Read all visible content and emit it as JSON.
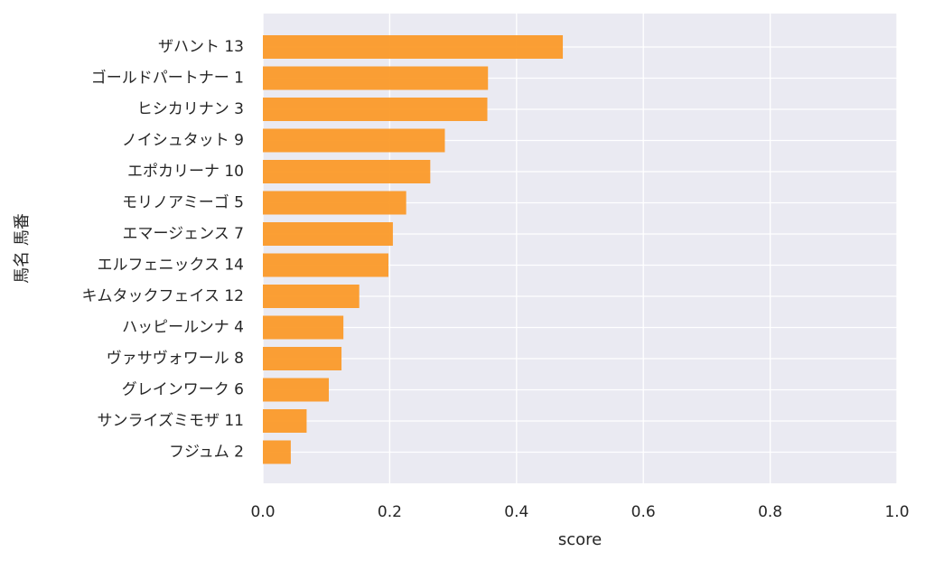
{
  "chart_data": {
    "type": "bar",
    "orientation": "horizontal",
    "categories": [
      "ザハント 13",
      "ゴールドパートナー 1",
      "ヒシカリナン 3",
      "ノイシュタット 9",
      "エポカリーナ 10",
      "モリノアミーゴ 5",
      "エマージェンス 7",
      "エルフェニックス 14",
      "キムタックフェイス 12",
      "ハッピールンナ 4",
      "ヴァサヴォワール 8",
      "グレインワーク 6",
      "サンライズミモザ 11",
      "フジュム 2"
    ],
    "values": [
      0.473,
      0.355,
      0.354,
      0.287,
      0.264,
      0.226,
      0.205,
      0.198,
      0.152,
      0.127,
      0.124,
      0.104,
      0.069,
      0.044
    ],
    "xlabel": "score",
    "ylabel": "馬名 馬番",
    "xlim": [
      0,
      1.0
    ],
    "xticks": [
      "0.0",
      "0.2",
      "0.4",
      "0.6",
      "0.8",
      "1.0"
    ],
    "grid": true,
    "colors": {
      "bar": "#fb9a29",
      "background": "#eaeaf2",
      "grid": "#ffffff"
    }
  }
}
